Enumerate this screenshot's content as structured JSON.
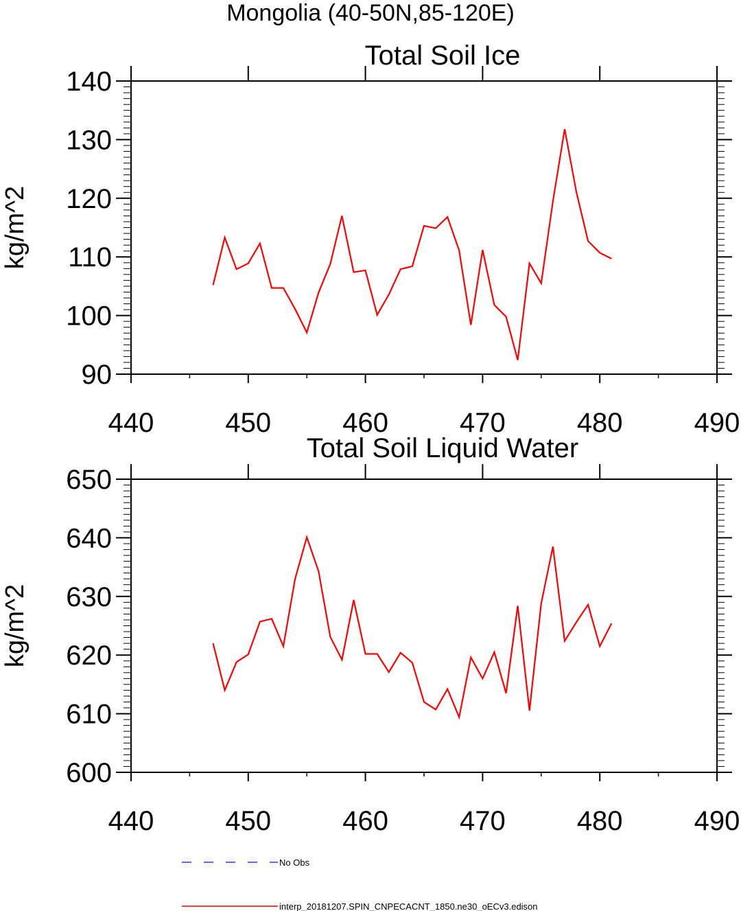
{
  "figure": {
    "title": "Mongolia (40-50N,85-120E)"
  },
  "legend": {
    "entries": [
      {
        "label": "No Obs",
        "color": "#3333dd",
        "dash": "dashed"
      },
      {
        "label": "interp_20181207.SPIN_CNPECACNT_1850.ne30_oECv3.edison",
        "color": "#ff0000",
        "dash": "solid"
      }
    ]
  },
  "chart_data": [
    {
      "type": "line",
      "title": "Total Soil Ice",
      "xlabel": "",
      "ylabel": "kg/m^2",
      "xlim": [
        440,
        490
      ],
      "ylim": [
        90,
        140
      ],
      "xticks": [
        440,
        450,
        460,
        470,
        480,
        490
      ],
      "yticks": [
        90,
        100,
        110,
        120,
        130,
        140
      ],
      "x_minor_step": 5,
      "y_minor_step": 1,
      "grid": false,
      "series": [
        {
          "name": "interp_20181207.SPIN_CNPECACNT_1850.ne30_oECv3.edison",
          "color": "#ff0000",
          "x": [
            447,
            448,
            449,
            450,
            451,
            452,
            453,
            454,
            455,
            456,
            457,
            458,
            459,
            460,
            461,
            462,
            463,
            464,
            465,
            466,
            467,
            468,
            469,
            470,
            471,
            472,
            473,
            474,
            475,
            476,
            477,
            478,
            479,
            480,
            481
          ],
          "y": [
            105.2,
            113.3,
            107.9,
            108.9,
            112.3,
            104.7,
            104.7,
            101.1,
            97.1,
            103.9,
            108.8,
            117.0,
            107.4,
            107.7,
            100.1,
            103.6,
            107.9,
            108.4,
            115.3,
            114.9,
            116.8,
            111.1,
            98.4,
            111.2,
            101.8,
            99.8,
            92.4,
            108.9,
            105.5,
            119.5,
            131.8,
            121.1,
            112.7,
            110.7,
            109.7
          ]
        }
      ]
    },
    {
      "type": "line",
      "title": "Total Soil Liquid Water",
      "xlabel": "",
      "ylabel": "kg/m^2",
      "xlim": [
        440,
        490
      ],
      "ylim": [
        600,
        650
      ],
      "xticks": [
        440,
        450,
        460,
        470,
        480,
        490
      ],
      "yticks": [
        600,
        610,
        620,
        630,
        640,
        650
      ],
      "x_minor_step": 5,
      "y_minor_step": 1,
      "grid": false,
      "series": [
        {
          "name": "interp_20181207.SPIN_CNPECACNT_1850.ne30_oECv3.edison",
          "color": "#ff0000",
          "x": [
            447,
            448,
            449,
            450,
            451,
            452,
            453,
            454,
            455,
            456,
            457,
            458,
            459,
            460,
            461,
            462,
            463,
            464,
            465,
            466,
            467,
            468,
            469,
            470,
            471,
            472,
            473,
            474,
            475,
            476,
            477,
            478,
            479,
            480,
            481
          ],
          "y": [
            622.0,
            614.0,
            618.8,
            620.1,
            625.7,
            626.2,
            621.5,
            633.0,
            640.1,
            634.3,
            623.1,
            619.2,
            629.4,
            620.2,
            620.2,
            617.1,
            620.4,
            618.7,
            612.0,
            610.7,
            614.2,
            609.4,
            619.6,
            616.0,
            620.5,
            613.5,
            628.4,
            610.5,
            628.8,
            638.5,
            622.4,
            625.6,
            628.6,
            621.5,
            625.4
          ]
        }
      ]
    }
  ]
}
